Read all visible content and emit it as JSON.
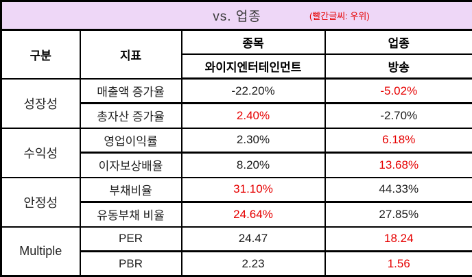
{
  "title": {
    "text": "vs. 업종",
    "note": "(빨간글씨: 우위)"
  },
  "colors": {
    "title_bg": "#eed7f7",
    "superior_red": "#e60000",
    "text_black": "#1a1a1a",
    "border": "#000000"
  },
  "table": {
    "headers": {
      "category": "구분",
      "indicator": "지표",
      "stock_col": "종목",
      "industry_col": "업종",
      "stock_name": "와이지엔터테인먼트",
      "industry_name": "방송"
    },
    "groups": [
      {
        "category": "성장성",
        "rows": [
          {
            "indicator": "매출액 증가율",
            "stock": "-22.20%",
            "stock_color": "black",
            "industry": "-5.02%",
            "industry_color": "red"
          },
          {
            "indicator": "총자산 증가율",
            "stock": "2.40%",
            "stock_color": "red",
            "industry": "-2.70%",
            "industry_color": "black"
          }
        ]
      },
      {
        "category": "수익성",
        "rows": [
          {
            "indicator": "영업이익률",
            "stock": "2.30%",
            "stock_color": "black",
            "industry": "6.18%",
            "industry_color": "red"
          },
          {
            "indicator": "이자보상배율",
            "stock": "8.20%",
            "stock_color": "black",
            "industry": "13.68%",
            "industry_color": "red"
          }
        ]
      },
      {
        "category": "안정성",
        "rows": [
          {
            "indicator": "부채비율",
            "stock": "31.10%",
            "stock_color": "red",
            "industry": "44.33%",
            "industry_color": "black"
          },
          {
            "indicator": "유동부채 비율",
            "stock": "24.64%",
            "stock_color": "red",
            "industry": "27.85%",
            "industry_color": "black"
          }
        ]
      },
      {
        "category": "Multiple",
        "rows": [
          {
            "indicator": "PER",
            "stock": "24.47",
            "stock_color": "black",
            "industry": "18.24",
            "industry_color": "red"
          },
          {
            "indicator": "PBR",
            "stock": "2.23",
            "stock_color": "black",
            "industry": "1.56",
            "industry_color": "red"
          }
        ]
      }
    ]
  },
  "chart_data": {
    "type": "table",
    "title": "vs. 업종",
    "note": "(빨간글씨: 우위)",
    "legend": "red text marks the superior (우위) value",
    "columns": [
      "구분",
      "지표",
      "종목: 와이지엔터테인먼트",
      "업종: 방송"
    ],
    "rows": [
      {
        "category": "성장성",
        "indicator": "매출액 증가율",
        "stock": -22.2,
        "industry": -5.02,
        "unit": "%",
        "superior": "industry"
      },
      {
        "category": "성장성",
        "indicator": "총자산 증가율",
        "stock": 2.4,
        "industry": -2.7,
        "unit": "%",
        "superior": "stock"
      },
      {
        "category": "수익성",
        "indicator": "영업이익률",
        "stock": 2.3,
        "industry": 6.18,
        "unit": "%",
        "superior": "industry"
      },
      {
        "category": "수익성",
        "indicator": "이자보상배율",
        "stock": 8.2,
        "industry": 13.68,
        "unit": "%",
        "superior": "industry"
      },
      {
        "category": "안정성",
        "indicator": "부채비율",
        "stock": 31.1,
        "industry": 44.33,
        "unit": "%",
        "superior": "stock"
      },
      {
        "category": "안정성",
        "indicator": "유동부채 비율",
        "stock": 24.64,
        "industry": 27.85,
        "unit": "%",
        "superior": "stock"
      },
      {
        "category": "Multiple",
        "indicator": "PER",
        "stock": 24.47,
        "industry": 18.24,
        "unit": "",
        "superior": "industry"
      },
      {
        "category": "Multiple",
        "indicator": "PBR",
        "stock": 2.23,
        "industry": 1.56,
        "unit": "",
        "superior": "industry"
      }
    ]
  }
}
